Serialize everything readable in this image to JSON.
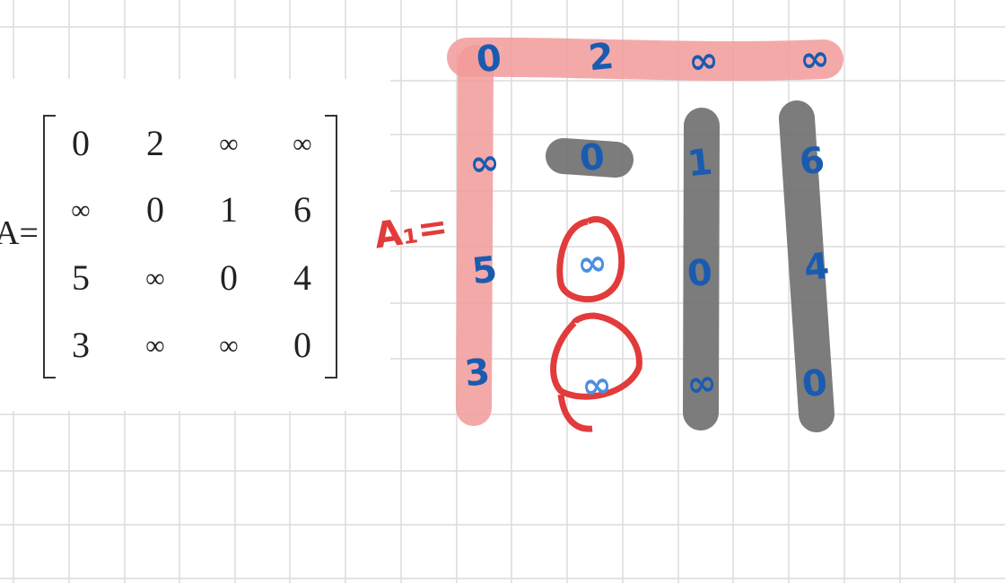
{
  "matrix": {
    "label": "A=",
    "rows": [
      [
        "0",
        "2",
        "∞",
        "∞"
      ],
      [
        "∞",
        "0",
        "1",
        "6"
      ],
      [
        "5",
        "∞",
        "0",
        "4"
      ],
      [
        "3",
        "∞",
        "∞",
        "0"
      ]
    ]
  },
  "handwritten": {
    "label": "A₁=",
    "rows": [
      [
        "0",
        "2",
        "∞",
        "∞"
      ],
      [
        "∞",
        "0",
        "1",
        "6"
      ],
      [
        "5",
        "∞",
        "0",
        "4"
      ],
      [
        "3",
        "∞",
        "∞",
        "0"
      ]
    ]
  },
  "colors": {
    "grid_line": "#dcdcdc",
    "pink_highlight": "#f29a9a",
    "gray_highlight": "#6e6e6e",
    "ink_blue": "#1a5bb0",
    "ink_red": "#e23b3b"
  }
}
